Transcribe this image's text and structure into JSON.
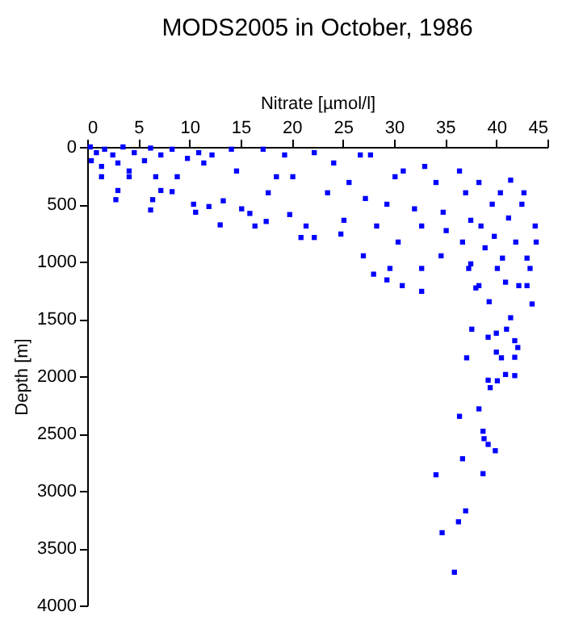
{
  "chart_data": {
    "type": "scatter",
    "title": "MODS2005 in October, 1986",
    "xlabel": "Nitrate [µmol/l]",
    "ylabel": "Depth [m]",
    "xlim": [
      0,
      45
    ],
    "xticks": [
      0,
      5,
      10,
      15,
      20,
      25,
      30,
      35,
      40,
      45
    ],
    "ylim": [
      4000,
      0
    ],
    "yticks": [
      0,
      500,
      1000,
      1500,
      2000,
      2500,
      3000,
      3500,
      4000
    ],
    "grid": false,
    "marker": "square",
    "series": [
      {
        "color": "#0000ff",
        "x": [
          0.3,
          0.4,
          0.9,
          1.7,
          1.4,
          2.5,
          3.0,
          3.5,
          4.1,
          4.6,
          5.6,
          6.2,
          6.7,
          7.2,
          8.3,
          8.8,
          9.8,
          10.9,
          11.4,
          12.2,
          1.4,
          2.8,
          3.0,
          4.1,
          6.2,
          6.4,
          7.2,
          8.3,
          10.4,
          10.6,
          11.9,
          13.0,
          13.3,
          14.1,
          14.6,
          15.1,
          15.9,
          16.4,
          17.5,
          17.2,
          17.7,
          18.5,
          19.3,
          19.8,
          20.1,
          20.9,
          21.4,
          22.2,
          22.2,
          23.5,
          24.1,
          24.8,
          25.1,
          25.6,
          26.7,
          27.0,
          27.2,
          27.7,
          28.0,
          28.3,
          29.3,
          29.3,
          29.6,
          30.1,
          30.4,
          30.8,
          30.9,
          32.0,
          32.7,
          32.7,
          32.7,
          33.0,
          34.1,
          34.6,
          34.8,
          35.1,
          36.4,
          36.7,
          37.0,
          37.3,
          37.5,
          38.0,
          38.3,
          38.5,
          38.9,
          39.3,
          39.6,
          39.8,
          40.1,
          40.4,
          40.6,
          40.9,
          41.2,
          41.4,
          41.4,
          41.9,
          42.2,
          42.5,
          42.7,
          43.0,
          43.3,
          43.5,
          43.8,
          43.9,
          43.0,
          37.5,
          38.3,
          37.6,
          39.2,
          40.0,
          41.0,
          41.8,
          42.1,
          40.0,
          40.5,
          41.8,
          37.1,
          40.9,
          41.8,
          39.2,
          40.1,
          39.4,
          38.3,
          36.4,
          38.7,
          38.8,
          39.2,
          39.9,
          36.7,
          34.1,
          38.7,
          37.0,
          36.3,
          34.7,
          35.9
        ],
        "values": [
          0,
          120,
          50,
          20,
          170,
          70,
          140,
          0,
          210,
          50,
          120,
          10,
          260,
          70,
          20,
          260,
          100,
          50,
          140,
          70,
          260,
          460,
          380,
          260,
          550,
          460,
          380,
          390,
          500,
          570,
          520,
          680,
          470,
          20,
          210,
          540,
          580,
          690,
          650,
          20,
          400,
          260,
          70,
          590,
          260,
          790,
          690,
          790,
          50,
          400,
          140,
          760,
          640,
          310,
          70,
          950,
          450,
          70,
          1110,
          690,
          500,
          1160,
          1060,
          260,
          830,
          1210,
          210,
          540,
          1260,
          1060,
          690,
          170,
          310,
          950,
          570,
          730,
          210,
          830,
          400,
          1060,
          640,
          1230,
          310,
          690,
          880,
          1350,
          500,
          780,
          1060,
          400,
          970,
          1180,
          620,
          290,
          1490,
          830,
          1210,
          500,
          400,
          970,
          1060,
          1370,
          690,
          830,
          1210,
          1020,
          1210,
          1590,
          1660,
          1625,
          1590,
          1690,
          1750,
          1790,
          1840,
          1835,
          1840,
          1985,
          1995,
          2035,
          2040,
          2100,
          2285,
          2350,
          2480,
          2545,
          2595,
          2650,
          2720,
          2860,
          2850,
          3175,
          3270,
          3365,
          3710
        ]
      }
    ]
  }
}
